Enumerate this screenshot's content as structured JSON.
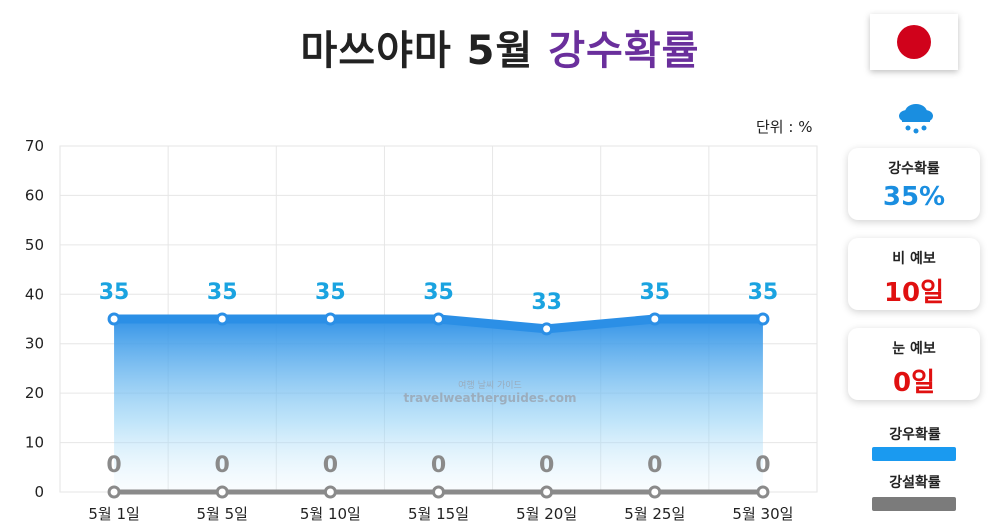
{
  "title": {
    "main": "마쓰야마 5월",
    "accent": "강수확률"
  },
  "unit_label": "단위 : %",
  "watermark": {
    "line1": "여행 날씨 가이드",
    "line2": "travelweatherguides.com"
  },
  "side": {
    "cards": [
      {
        "label": "강수확률",
        "value": "35%",
        "color": "#1a8ee0"
      },
      {
        "label": "비 예보",
        "value": "10일",
        "color": "#e01010"
      },
      {
        "label": "눈 예보",
        "value": "0일",
        "color": "#e01010"
      }
    ],
    "legend": [
      {
        "label": "강우확률",
        "color": "#1a9af0"
      },
      {
        "label": "강설확률",
        "color": "#7b7b7b"
      }
    ]
  },
  "chart_data": {
    "type": "line",
    "categories": [
      "5월 1일",
      "5월 5일",
      "5월 10일",
      "5월 15일",
      "5월 20일",
      "5월 25일",
      "5월 30일"
    ],
    "series": [
      {
        "name": "강우확률",
        "values": [
          35,
          35,
          35,
          35,
          33,
          35,
          35
        ],
        "color": "#2b8fe6",
        "label_color": "#1aa3e0"
      },
      {
        "name": "강설확률",
        "values": [
          0,
          0,
          0,
          0,
          0,
          0,
          0
        ],
        "color": "#8a8a8a",
        "label_color": "#8a8a8a"
      }
    ],
    "ylim": [
      0,
      70
    ],
    "yticks": [
      "0",
      "10",
      "20",
      "30",
      "40",
      "50",
      "60",
      "70"
    ],
    "unit": "%"
  }
}
